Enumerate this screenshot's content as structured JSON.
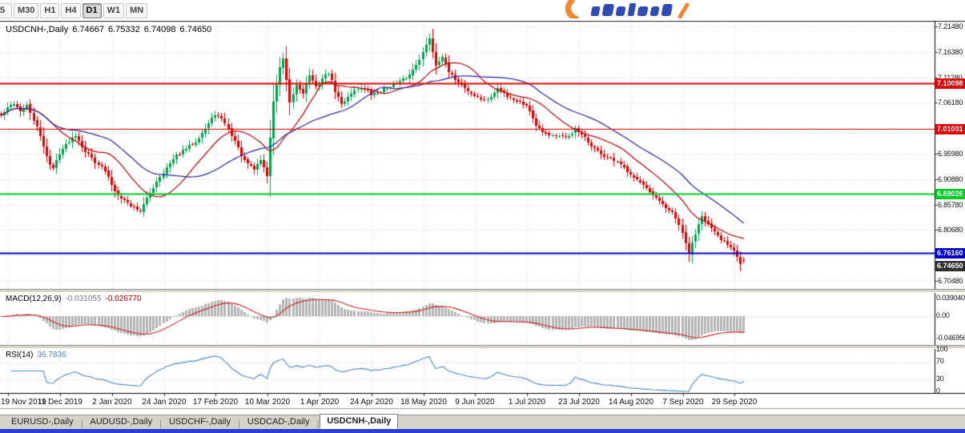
{
  "toolbar": {
    "timeframes": [
      "5",
      "M30",
      "H1",
      "H4",
      "D1",
      "W1",
      "MN"
    ],
    "active": "D1"
  },
  "chart": {
    "symbol_period": "USDCNH-,Daily",
    "open": "6.74667",
    "high": "6.75332",
    "low": "6.74098",
    "close": "6.74650"
  },
  "price_axis": {
    "ticks": [
      "7.21480",
      "7.16380",
      "7.11280",
      "7.06180",
      "7.01080",
      "6.95980",
      "6.90880",
      "6.85780",
      "6.80680",
      "6.75580",
      "6.70480"
    ]
  },
  "levels": [
    {
      "label": "7.10098",
      "value": 7.10098,
      "color_key": "resistance",
      "thickness": 2
    },
    {
      "label": "7.01001",
      "value": 7.01001,
      "color_key": "resistance",
      "thickness": 1
    },
    {
      "label": "6.88026",
      "value": 6.88026,
      "color_key": "support_green",
      "thickness": 2
    },
    {
      "label": "6.76160",
      "value": 6.7616,
      "color_key": "support_blue",
      "thickness": 2
    }
  ],
  "current_price": {
    "label": "6.74650",
    "value": 6.7465
  },
  "macd": {
    "name": "MACD(12,26,9)",
    "value_main": "-0.031055",
    "value_signal": "-0.026770",
    "axis": [
      "0.039040",
      "0.00",
      "-0.046950"
    ]
  },
  "rsi": {
    "name": "RSI(14)",
    "value": "36.7836",
    "axis": [
      "100",
      "70",
      "30",
      "0"
    ]
  },
  "x_axis": {
    "dates": [
      "19 Nov 2019",
      "11 Dec 2019",
      "2 Jan 2020",
      "24 Jan 2020",
      "17 Feb 2020",
      "10 Mar 2020",
      "1 Apr 2020",
      "24 Apr 2020",
      "18 May 2020",
      "9 Jun 2020",
      "1 Jul 2020",
      "23 Jul 2020",
      "14 Aug 2020",
      "7 Sep 2020",
      "29 Sep 2020"
    ]
  },
  "tabs": [
    {
      "label": "EURUSD-,Daily",
      "active": false
    },
    {
      "label": "AUDUSD-,Daily",
      "active": false
    },
    {
      "label": "USDCHF-,Daily",
      "active": false
    },
    {
      "label": "USDCAD-,Daily",
      "active": false
    },
    {
      "label": "USDCNH-,Daily",
      "active": true
    }
  ],
  "colors": {
    "up_candle": "#00a24d",
    "down_candle": "#e30000",
    "ma_fast": "#b30000",
    "ma_slow": "#24249a",
    "grid": "#d2d2d2",
    "macd_histogram": "#b4b4b4",
    "macd_signal": "#cc2222",
    "rsi_line": "#4f86c6",
    "resistance": "#e30000",
    "support_green": "#00cc22",
    "support_blue": "#0000cc",
    "price_box_bg": "#2f2f2f",
    "taskbar_blue": "#2b3fd6",
    "tab_bar_bg": "#d6d2ca",
    "logo_orange": "#f47b20",
    "logo_blue": "#1e3db0"
  },
  "chart_data": {
    "type": "candlestick",
    "symbol": "USDCNH-",
    "timeframe": "Daily",
    "current_ohlc": {
      "open": 6.74667,
      "high": 6.75332,
      "low": 6.74098,
      "close": 6.7465
    },
    "ylim": [
      6.6888,
      7.2259
    ],
    "price_tick_top": 7.2148,
    "price_tick_step": 0.051,
    "candle_count": 230,
    "labels_every_n_candles": 16,
    "first_label_candle_index": 2,
    "x_labels": [
      "19 Nov 2019",
      "11 Dec 2019",
      "2 Jan 2020",
      "24 Jan 2020",
      "17 Feb 2020",
      "10 Mar 2020",
      "1 Apr 2020",
      "24 Apr 2020",
      "18 May 2020",
      "9 Jun 2020",
      "1 Jul 2020",
      "23 Jul 2020",
      "14 Aug 2020",
      "7 Sep 2020",
      "29 Sep 2020"
    ],
    "close_waypoints": [
      [
        0,
        7.036
      ],
      [
        2,
        7.05
      ],
      [
        4,
        7.062
      ],
      [
        6,
        7.045
      ],
      [
        8,
        7.056
      ],
      [
        10,
        7.028
      ],
      [
        12,
        6.995
      ],
      [
        15,
        6.938
      ],
      [
        16,
        6.93
      ],
      [
        18,
        6.962
      ],
      [
        21,
        6.985
      ],
      [
        23,
        6.998
      ],
      [
        26,
        6.965
      ],
      [
        29,
        6.945
      ],
      [
        32,
        6.925
      ],
      [
        35,
        6.885
      ],
      [
        38,
        6.866
      ],
      [
        41,
        6.852
      ],
      [
        43,
        6.846
      ],
      [
        45,
        6.87
      ],
      [
        48,
        6.905
      ],
      [
        51,
        6.932
      ],
      [
        54,
        6.955
      ],
      [
        57,
        6.97
      ],
      [
        60,
        6.985
      ],
      [
        63,
        7.01
      ],
      [
        66,
        7.04
      ],
      [
        69,
        7.022
      ],
      [
        72,
        6.985
      ],
      [
        75,
        6.945
      ],
      [
        78,
        6.928
      ],
      [
        80,
        6.948
      ],
      [
        82,
        6.915
      ],
      [
        84,
        7.065
      ],
      [
        86,
        7.13
      ],
      [
        87,
        7.15
      ],
      [
        89,
        7.06
      ],
      [
        91,
        7.098
      ],
      [
        93,
        7.082
      ],
      [
        95,
        7.118
      ],
      [
        97,
        7.092
      ],
      [
        99,
        7.11
      ],
      [
        101,
        7.122
      ],
      [
        103,
        7.085
      ],
      [
        105,
        7.058
      ],
      [
        108,
        7.082
      ],
      [
        111,
        7.094
      ],
      [
        114,
        7.078
      ],
      [
        117,
        7.085
      ],
      [
        120,
        7.096
      ],
      [
        123,
        7.103
      ],
      [
        126,
        7.118
      ],
      [
        128,
        7.14
      ],
      [
        130,
        7.162
      ],
      [
        132,
        7.192
      ],
      [
        134,
        7.138
      ],
      [
        136,
        7.155
      ],
      [
        138,
        7.122
      ],
      [
        141,
        7.105
      ],
      [
        144,
        7.085
      ],
      [
        147,
        7.072
      ],
      [
        150,
        7.066
      ],
      [
        153,
        7.09
      ],
      [
        156,
        7.076
      ],
      [
        159,
        7.066
      ],
      [
        162,
        7.058
      ],
      [
        165,
        7.018
      ],
      [
        168,
        7.0
      ],
      [
        171,
        6.996
      ],
      [
        174,
        6.99
      ],
      [
        177,
        7.008
      ],
      [
        180,
        6.99
      ],
      [
        183,
        6.97
      ],
      [
        186,
        6.955
      ],
      [
        189,
        6.945
      ],
      [
        192,
        6.932
      ],
      [
        195,
        6.915
      ],
      [
        198,
        6.895
      ],
      [
        201,
        6.875
      ],
      [
        204,
        6.858
      ],
      [
        207,
        6.84
      ],
      [
        209,
        6.818
      ],
      [
        211,
        6.78
      ],
      [
        212,
        6.76
      ],
      [
        214,
        6.8
      ],
      [
        216,
        6.838
      ],
      [
        218,
        6.818
      ],
      [
        220,
        6.8
      ],
      [
        222,
        6.788
      ],
      [
        224,
        6.78
      ],
      [
        226,
        6.768
      ],
      [
        228,
        6.738
      ],
      [
        229,
        6.7465
      ]
    ],
    "levels": {
      "resistance": [
        7.10098,
        7.01001
      ],
      "support_green": [
        6.88026
      ],
      "support_blue": [
        6.7616
      ],
      "current_price": 6.7465
    },
    "indicators": {
      "ma_fast_period": 16,
      "ma_slow_period": 34,
      "macd_params": [
        12,
        26,
        9
      ],
      "macd_current": [
        -0.031055,
        -0.02677
      ],
      "rsi_period": 14,
      "rsi_current": 36.7836
    }
  }
}
